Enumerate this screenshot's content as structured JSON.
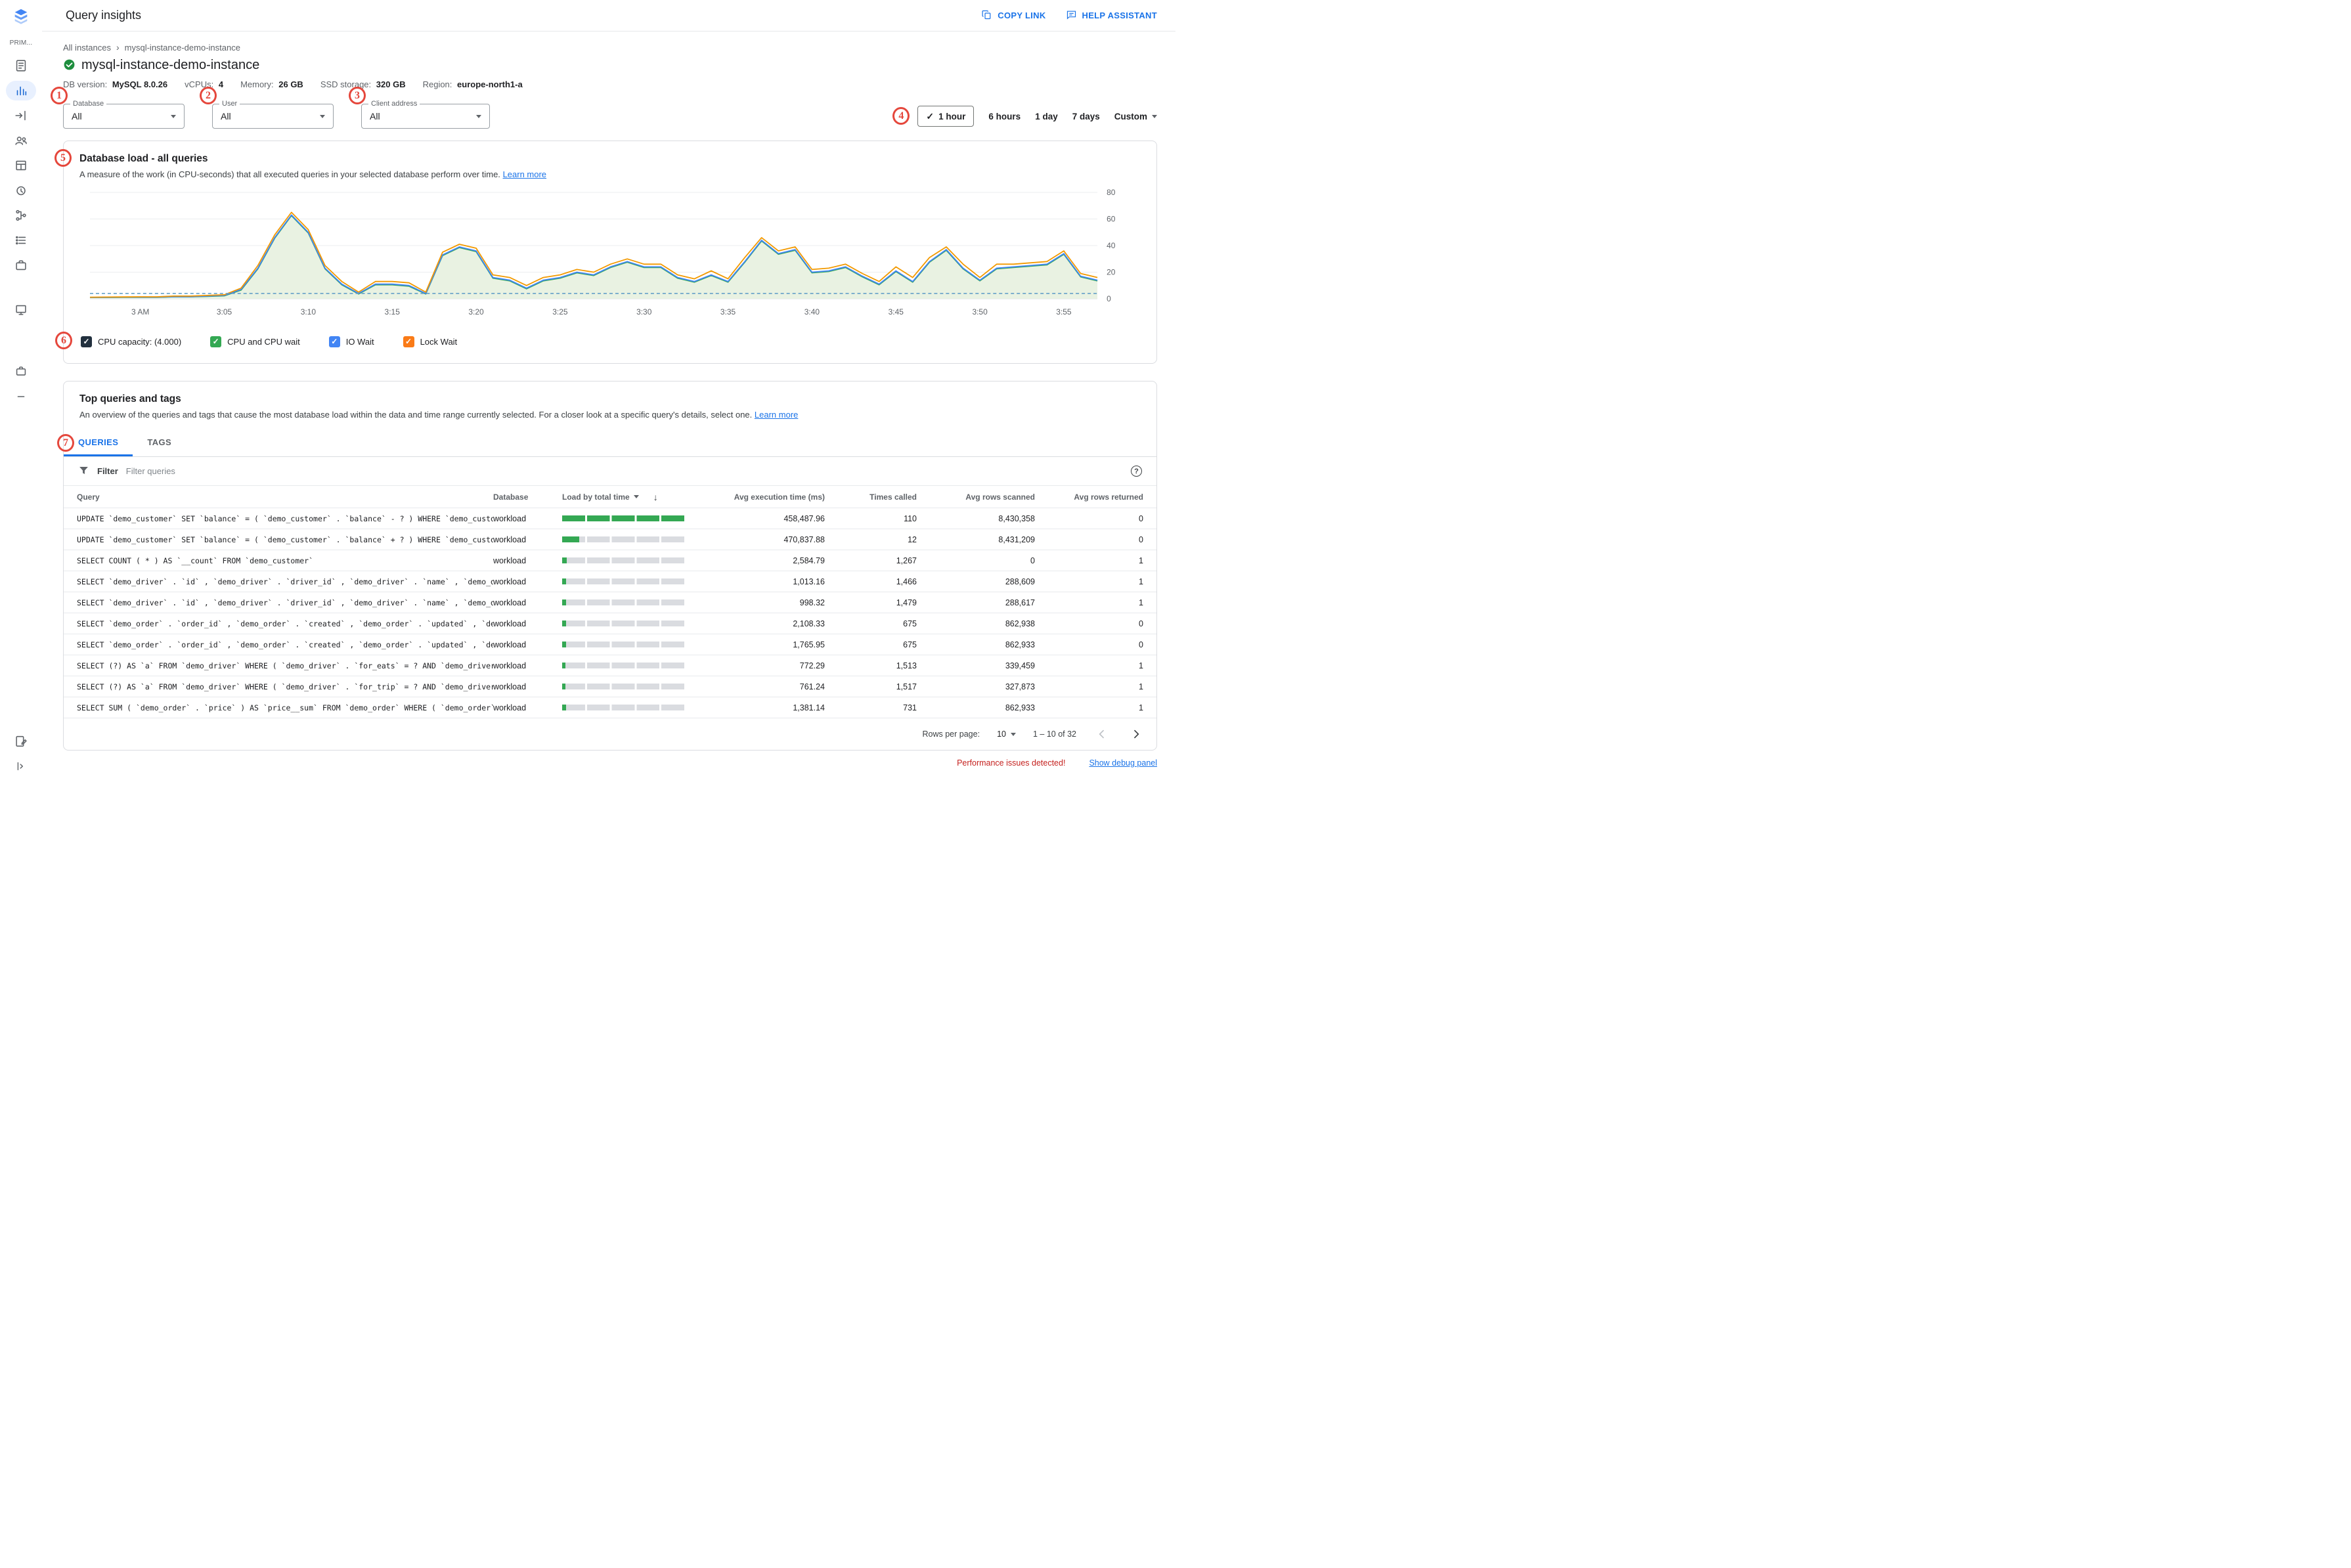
{
  "app": {
    "title": "Query insights",
    "actions": {
      "copy_link": "COPY LINK",
      "help_assistant": "HELP ASSISTANT"
    }
  },
  "sidebar": {
    "section_label": "PRIM..."
  },
  "breadcrumb": {
    "parent": "All instances",
    "current": "mysql-instance-demo-instance"
  },
  "instance": {
    "name": "mysql-instance-demo-instance",
    "meta": [
      {
        "label": "DB version:",
        "value": "MySQL 8.0.26"
      },
      {
        "label": "vCPUs:",
        "value": "4"
      },
      {
        "label": "Memory:",
        "value": "26 GB"
      },
      {
        "label": "SSD storage:",
        "value": "320 GB"
      },
      {
        "label": "Region:",
        "value": "europe-north1-a"
      }
    ]
  },
  "filters": [
    {
      "label": "Database",
      "value": "All"
    },
    {
      "label": "User",
      "value": "All"
    },
    {
      "label": "Client address",
      "value": "All"
    }
  ],
  "time_range": {
    "options": [
      "1 hour",
      "6 hours",
      "1 day",
      "7 days",
      "Custom"
    ],
    "selected": "1 hour"
  },
  "chart_card": {
    "title": "Database load - all queries",
    "description": "A measure of the work (in CPU-seconds) that all executed queries in your selected database perform over time.",
    "learn_more": "Learn more"
  },
  "chart_data": {
    "type": "area",
    "title": "Database load - all queries",
    "ylim": [
      0,
      80
    ],
    "yticks": [
      0,
      20,
      40,
      60,
      80
    ],
    "x_start_minute": -3,
    "x_end_minute": 57,
    "xticks": [
      {
        "minute": 0,
        "label": "3 AM"
      },
      {
        "minute": 5,
        "label": "3:05"
      },
      {
        "minute": 10,
        "label": "3:10"
      },
      {
        "minute": 15,
        "label": "3:15"
      },
      {
        "minute": 20,
        "label": "3:20"
      },
      {
        "minute": 25,
        "label": "3:25"
      },
      {
        "minute": 30,
        "label": "3:30"
      },
      {
        "minute": 35,
        "label": "3:35"
      },
      {
        "minute": 40,
        "label": "3:40"
      },
      {
        "minute": 45,
        "label": "3:45"
      },
      {
        "minute": 50,
        "label": "3:50"
      },
      {
        "minute": 55,
        "label": "3:55"
      }
    ],
    "capacity": {
      "label": "CPU capacity",
      "value": 4.0,
      "color": "#64a0c8"
    },
    "fill_color": "#e9f2e2",
    "series": [
      {
        "name": "CPU and CPU wait",
        "color": "#34a853",
        "values": [
          1,
          1,
          1.1,
          1.1,
          1.1,
          1.5,
          1.5,
          1.8,
          2.2,
          6.5,
          22.5,
          45.5,
          62.5,
          49.5,
          22.5,
          10.5,
          3.6,
          10.5,
          10.5,
          9.5,
          3.6,
          32.5,
          38.5,
          35.5,
          15.5,
          13.5,
          7.5,
          13.5,
          15.5,
          19.5,
          17.5,
          23.5,
          27.5,
          23.5,
          23.5,
          15.5,
          12.5,
          17.5,
          12.5,
          27.5,
          43.5,
          33.5,
          36.5,
          19.5,
          20.5,
          23.5,
          16.5,
          10.5,
          20.5,
          12.5,
          27.5,
          36.5,
          22.5,
          13.5,
          22.5,
          23.5,
          24.5,
          25.5,
          33.5,
          16.5,
          13.5
        ]
      },
      {
        "name": "IO Wait",
        "color": "#4285f4",
        "values": [
          1,
          1.1,
          1.2,
          1.2,
          1.2,
          1.6,
          1.6,
          2,
          2.5,
          7,
          23,
          46,
          63,
          50,
          23,
          11,
          4,
          11,
          11,
          10,
          4,
          33,
          39,
          36,
          16,
          14,
          8,
          14,
          16,
          20,
          18,
          24,
          28,
          24,
          24,
          16,
          13,
          18,
          13,
          28,
          44,
          34,
          37,
          20,
          21,
          24,
          17,
          11,
          21,
          13,
          28,
          37,
          23,
          14,
          23,
          24,
          25,
          26,
          34,
          17,
          14
        ]
      },
      {
        "name": "Lock Wait",
        "color": "#f29900",
        "values": [
          1.2,
          1.3,
          1.4,
          1.5,
          1.5,
          2,
          2,
          2.5,
          3,
          8,
          25,
          48,
          65,
          52,
          25,
          13,
          5,
          13,
          13,
          12,
          5,
          35,
          41,
          38,
          18,
          16,
          10,
          16,
          18,
          22,
          20,
          26,
          30,
          26,
          26,
          18,
          15,
          21,
          15,
          31,
          46,
          36,
          39,
          22,
          23,
          26,
          19,
          13,
          24,
          16,
          31,
          39,
          26,
          16,
          26,
          26,
          27,
          28,
          36,
          19,
          16
        ]
      }
    ]
  },
  "legend": [
    {
      "label": "CPU capacity: (4.000)",
      "color": "#22303e",
      "checked": true
    },
    {
      "label": "CPU and CPU wait",
      "color": "#34a853",
      "checked": true
    },
    {
      "label": "IO Wait",
      "color": "#4285f4",
      "checked": true
    },
    {
      "label": "Lock Wait",
      "color": "#fa7b17",
      "checked": true
    }
  ],
  "top_queries": {
    "title": "Top queries and tags",
    "description": "An overview of the queries and tags that cause the most database load within the data and time range currently selected. For a closer look at a specific query's details, select one.",
    "learn_more": "Learn more",
    "tabs": [
      {
        "label": "QUERIES",
        "active": true
      },
      {
        "label": "TAGS",
        "active": false
      }
    ],
    "filter_label": "Filter",
    "filter_placeholder": "Filter queries"
  },
  "table": {
    "columns": [
      {
        "label": "Query",
        "align": "left"
      },
      {
        "label": "Database",
        "align": "left"
      },
      {
        "label": "Load by total time",
        "align": "left",
        "sort_caret": true,
        "sort_arrow": true
      },
      {
        "label": "Avg execution time (ms)",
        "align": "right"
      },
      {
        "label": "Times called",
        "align": "right"
      },
      {
        "label": "Avg rows scanned",
        "align": "right"
      },
      {
        "label": "Avg rows returned",
        "align": "right"
      }
    ],
    "rows": [
      {
        "query": "UPDATE `demo_customer` SET `balance` = ( `demo_customer` . `balance` - ? ) WHERE `demo_customer` . `name`…",
        "database": "workload",
        "load_pct": 100,
        "avg_execution_ms": "458,487.96",
        "times_called": "110",
        "avg_rows_scanned": "8,430,358",
        "avg_rows_returned": "0"
      },
      {
        "query": "UPDATE `demo_customer` SET `balance` = ( `demo_customer` . `balance` + ? ) WHERE `demo_customer` . `name…",
        "database": "workload",
        "load_pct": 14,
        "avg_execution_ms": "470,837.88",
        "times_called": "12",
        "avg_rows_scanned": "8,431,209",
        "avg_rows_returned": "0"
      },
      {
        "query": "SELECT COUNT ( * ) AS `__count` FROM `demo_customer`",
        "database": "workload",
        "load_pct": 4,
        "avg_execution_ms": "2,584.79",
        "times_called": "1,267",
        "avg_rows_scanned": "0",
        "avg_rows_returned": "1"
      },
      {
        "query": "SELECT `demo_driver` . `id` , `demo_driver` . `driver_id` , `demo_driver` . `name` , `demo_driver` . `address` , `dem…",
        "database": "workload",
        "load_pct": 3,
        "avg_execution_ms": "1,013.16",
        "times_called": "1,466",
        "avg_rows_scanned": "288,609",
        "avg_rows_returned": "1"
      },
      {
        "query": "SELECT `demo_driver` . `id` , `demo_driver` . `driver_id` , `demo_driver` . `name` , `demo_driver` . `address` , `dem…",
        "database": "workload",
        "load_pct": 3,
        "avg_execution_ms": "998.32",
        "times_called": "1,479",
        "avg_rows_scanned": "288,617",
        "avg_rows_returned": "1"
      },
      {
        "query": "SELECT `demo_order` . `order_id` , `demo_order` . `created` , `demo_order` . `updated` , `demo_order` . `city` , `de…",
        "database": "workload",
        "load_pct": 3,
        "avg_execution_ms": "2,108.33",
        "times_called": "675",
        "avg_rows_scanned": "862,938",
        "avg_rows_returned": "0"
      },
      {
        "query": "SELECT `demo_order` . `order_id` , `demo_order` . `created` , `demo_order` . `updated` , `demo_order` . `city` , `de…",
        "database": "workload",
        "load_pct": 3,
        "avg_execution_ms": "1,765.95",
        "times_called": "675",
        "avg_rows_scanned": "862,933",
        "avg_rows_returned": "0"
      },
      {
        "query": "SELECT (?) AS `a` FROM `demo_driver` WHERE ( `demo_driver` . `for_eats` = ? AND `demo_driver` . `current_order…",
        "database": "workload",
        "load_pct": 2.5,
        "avg_execution_ms": "772.29",
        "times_called": "1,513",
        "avg_rows_scanned": "339,459",
        "avg_rows_returned": "1"
      },
      {
        "query": "SELECT (?) AS `a` FROM `demo_driver` WHERE ( `demo_driver` . `for_trip` = ? AND `demo_driver` . `current_order`…",
        "database": "workload",
        "load_pct": 2.5,
        "avg_execution_ms": "761.24",
        "times_called": "1,517",
        "avg_rows_scanned": "327,873",
        "avg_rows_returned": "1"
      },
      {
        "query": "SELECT SUM ( `demo_order` . `price` ) AS `price__sum` FROM `demo_order` WHERE ( `demo_order` . `customer_i…",
        "database": "workload",
        "load_pct": 3,
        "avg_execution_ms": "1,381.14",
        "times_called": "731",
        "avg_rows_scanned": "862,933",
        "avg_rows_returned": "1"
      }
    ]
  },
  "pagination": {
    "rows_per_page_label": "Rows per page:",
    "rows_per_page_value": "10",
    "range_text": "1 – 10 of 32"
  },
  "footer": {
    "warning": "Performance issues detected!",
    "debug_link": "Show debug panel"
  },
  "annotations": [
    "1",
    "2",
    "3",
    "4",
    "5",
    "6",
    "7"
  ]
}
